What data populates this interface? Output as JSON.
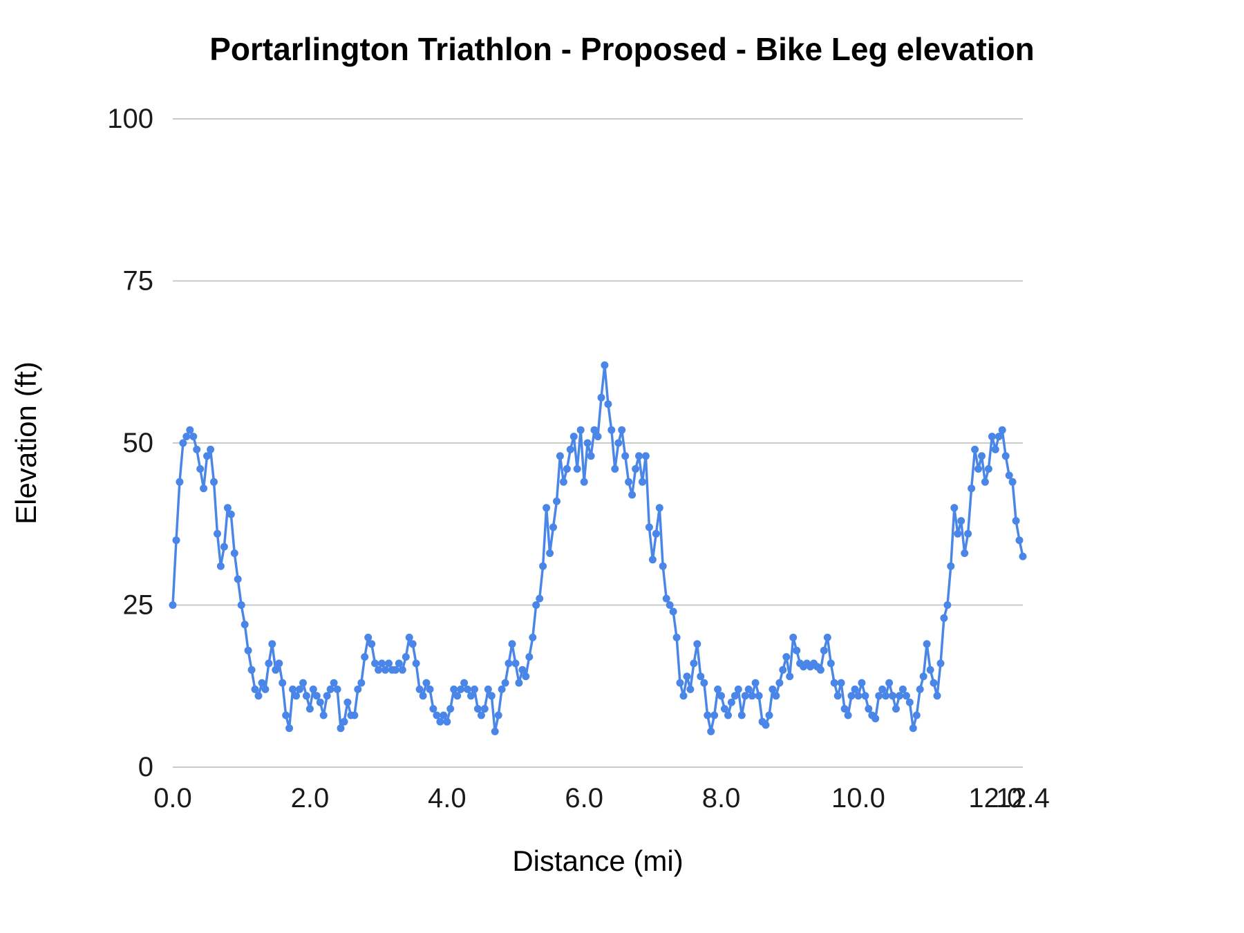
{
  "title": "Portarlington Triathlon - Proposed  - Bike Leg elevation",
  "chart_data": {
    "type": "line",
    "title": "Portarlington Triathlon - Proposed  - Bike Leg elevation",
    "xlabel": "Distance (mi)",
    "ylabel": "Elevation (ft)",
    "xlim": [
      0,
      12.4
    ],
    "ylim": [
      0,
      100
    ],
    "x_ticks": [
      0,
      2,
      4,
      6,
      8,
      10,
      12,
      12.4
    ],
    "x_tick_labels": [
      "0.0",
      "2.0",
      "4.0",
      "6.0",
      "8.0",
      "10.0",
      "12.0",
      "12.4"
    ],
    "y_ticks": [
      0,
      25,
      50,
      75,
      100
    ],
    "y_tick_labels": [
      "0",
      "25",
      "50",
      "75",
      "100"
    ],
    "grid": "horizontal",
    "legend_position": "none",
    "line_color": "#4a86e8",
    "grid_color": "#c9c9c9",
    "tick_label_color": "#1a1a1a",
    "marker": "circle",
    "series": [
      {
        "name": "Elevation",
        "x_start": 0,
        "x_step": 0.05,
        "values": [
          25,
          35,
          44,
          50,
          51,
          52,
          51,
          49,
          46,
          43,
          48,
          49,
          44,
          36,
          31,
          34,
          40,
          39,
          33,
          29,
          25,
          22,
          18,
          15,
          12,
          11,
          13,
          12,
          16,
          19,
          15,
          16,
          13,
          8,
          6,
          12,
          11,
          12,
          13,
          11,
          9,
          12,
          11,
          10,
          8,
          11,
          12,
          13,
          12,
          6,
          7,
          10,
          8,
          8,
          12,
          13,
          17,
          20,
          19,
          16,
          15,
          16,
          15,
          16,
          15,
          15,
          16,
          15,
          17,
          20,
          19,
          16,
          12,
          11,
          13,
          12,
          9,
          8,
          7,
          8,
          7,
          9,
          12,
          11,
          12,
          13,
          12,
          11,
          12,
          9,
          8,
          9,
          12,
          11,
          5.5,
          8,
          12,
          13,
          16,
          19,
          16,
          13,
          15,
          14,
          17,
          20,
          25,
          26,
          31,
          40,
          33,
          37,
          41,
          48,
          44,
          46,
          49,
          51,
          46,
          52,
          44,
          50,
          48,
          52,
          51,
          57,
          62,
          56,
          52,
          46,
          50,
          52,
          48,
          44,
          42,
          46,
          48,
          44,
          48,
          37,
          32,
          36,
          40,
          31,
          26,
          25,
          24,
          20,
          13,
          11,
          14,
          12,
          16,
          19,
          14,
          13,
          8,
          5.5,
          8,
          12,
          11,
          9,
          8,
          10,
          11,
          12,
          8,
          11,
          12,
          11,
          13,
          11,
          7,
          6.5,
          8,
          12,
          11,
          13,
          15,
          17,
          14,
          20,
          18,
          16,
          15.5,
          16,
          15.5,
          16,
          15.5,
          15,
          18,
          20,
          16,
          13,
          11,
          13,
          9,
          8,
          11,
          12,
          11,
          13,
          11,
          9,
          8,
          7.5,
          11,
          12,
          11,
          13,
          11,
          9,
          11,
          12,
          11,
          10,
          6,
          8,
          12,
          14,
          19,
          15,
          13,
          11,
          16,
          23,
          25,
          31,
          40,
          36,
          38,
          33,
          36,
          43,
          49,
          46,
          48,
          44,
          46,
          51,
          49,
          51,
          52,
          48,
          45,
          44,
          38,
          35,
          32.5
        ]
      }
    ]
  }
}
